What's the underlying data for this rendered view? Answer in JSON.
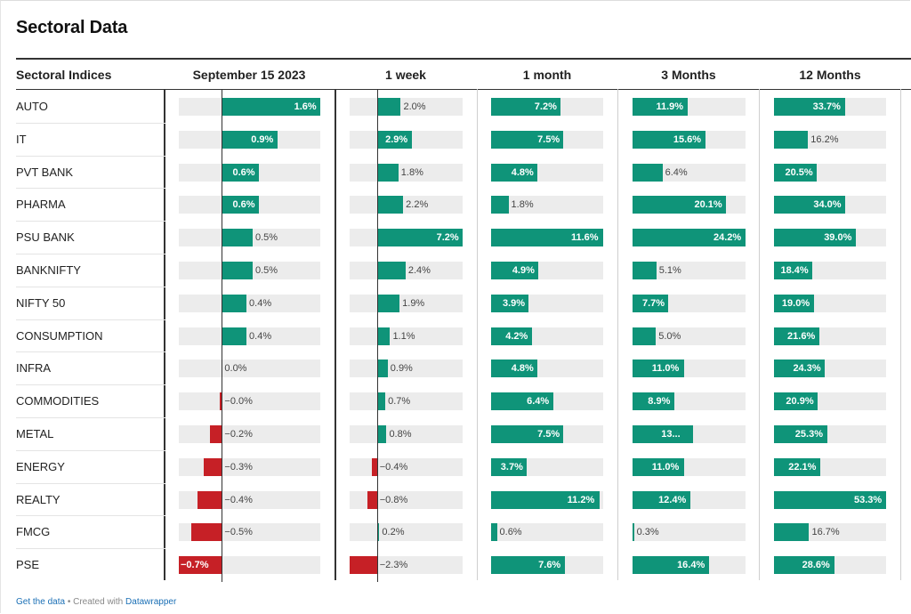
{
  "title": "Sectoral Data",
  "footer": {
    "link1": "Get the data",
    "sep": " • Created with ",
    "link2": "Datawrapper"
  },
  "colors": {
    "positive": "#0f9479",
    "negative": "#c62026",
    "track": "#ececec"
  },
  "chart_data": {
    "type": "table",
    "row_header": "Sectoral Indices",
    "columns": [
      "September 15 2023",
      "1 week",
      "1 month",
      "3 Months",
      "12 Months"
    ],
    "rows": [
      {
        "name": "AUTO",
        "values": [
          1.6,
          2.0,
          7.2,
          11.9,
          33.7
        ],
        "labels": [
          "1.6%",
          "2.0%",
          "7.2%",
          "11.9%",
          "33.7%"
        ]
      },
      {
        "name": "IT",
        "values": [
          0.9,
          2.9,
          7.5,
          15.6,
          16.2
        ],
        "labels": [
          "0.9%",
          "2.9%",
          "7.5%",
          "15.6%",
          "16.2%"
        ]
      },
      {
        "name": "PVT BANK",
        "values": [
          0.6,
          1.8,
          4.8,
          6.4,
          20.5
        ],
        "labels": [
          "0.6%",
          "1.8%",
          "4.8%",
          "6.4%",
          "20.5%"
        ]
      },
      {
        "name": "PHARMA",
        "values": [
          0.6,
          2.2,
          1.8,
          20.1,
          34.0
        ],
        "labels": [
          "0.6%",
          "2.2%",
          "1.8%",
          "20.1%",
          "34.0%"
        ]
      },
      {
        "name": "PSU BANK",
        "values": [
          0.5,
          7.2,
          11.6,
          24.2,
          39.0
        ],
        "labels": [
          "0.5%",
          "7.2%",
          "11.6%",
          "24.2%",
          "39.0%"
        ]
      },
      {
        "name": "BANKNIFTY",
        "values": [
          0.5,
          2.4,
          4.9,
          5.1,
          18.4
        ],
        "labels": [
          "0.5%",
          "2.4%",
          "4.9%",
          "5.1%",
          "18.4%"
        ]
      },
      {
        "name": "NIFTY 50",
        "values": [
          0.4,
          1.9,
          3.9,
          7.7,
          19.0
        ],
        "labels": [
          "0.4%",
          "1.9%",
          "3.9%",
          "7.7%",
          "19.0%"
        ]
      },
      {
        "name": "CONSUMPTION",
        "values": [
          0.4,
          1.1,
          4.2,
          5.0,
          21.6
        ],
        "labels": [
          "0.4%",
          "1.1%",
          "4.2%",
          "5.0%",
          "21.6%"
        ]
      },
      {
        "name": "INFRA",
        "values": [
          0.0,
          0.9,
          4.8,
          11.0,
          24.3
        ],
        "labels": [
          "0.0%",
          "0.9%",
          "4.8%",
          "11.0%",
          "24.3%"
        ]
      },
      {
        "name": "COMMODITIES",
        "values": [
          -0.04,
          0.7,
          6.4,
          8.9,
          20.9
        ],
        "labels": [
          "−0.0%",
          "0.7%",
          "6.4%",
          "8.9%",
          "20.9%"
        ]
      },
      {
        "name": "METAL",
        "values": [
          -0.2,
          0.8,
          7.5,
          13.0,
          25.3
        ],
        "labels": [
          "−0.2%",
          "0.8%",
          "7.5%",
          "13...",
          "25.3%"
        ]
      },
      {
        "name": "ENERGY",
        "values": [
          -0.3,
          -0.4,
          3.7,
          11.0,
          22.1
        ],
        "labels": [
          "−0.3%",
          "−0.4%",
          "3.7%",
          "11.0%",
          "22.1%"
        ]
      },
      {
        "name": "REALTY",
        "values": [
          -0.4,
          -0.8,
          11.2,
          12.4,
          53.3
        ],
        "labels": [
          "−0.4%",
          "−0.8%",
          "11.2%",
          "12.4%",
          "53.3%"
        ]
      },
      {
        "name": "FMCG",
        "values": [
          -0.5,
          0.2,
          0.6,
          0.3,
          16.7
        ],
        "labels": [
          "−0.5%",
          "0.2%",
          "0.6%",
          "0.3%",
          "16.7%"
        ]
      },
      {
        "name": "PSE",
        "values": [
          -0.7,
          -2.3,
          7.6,
          16.4,
          28.6
        ],
        "labels": [
          "−0.7%",
          "−2.3%",
          "7.6%",
          "16.4%",
          "28.6%"
        ]
      }
    ],
    "column_ranges": [
      [
        -0.7,
        1.6
      ],
      [
        -2.3,
        7.2
      ],
      [
        0,
        11.6
      ],
      [
        0,
        24.2
      ],
      [
        0,
        53.3
      ]
    ]
  }
}
